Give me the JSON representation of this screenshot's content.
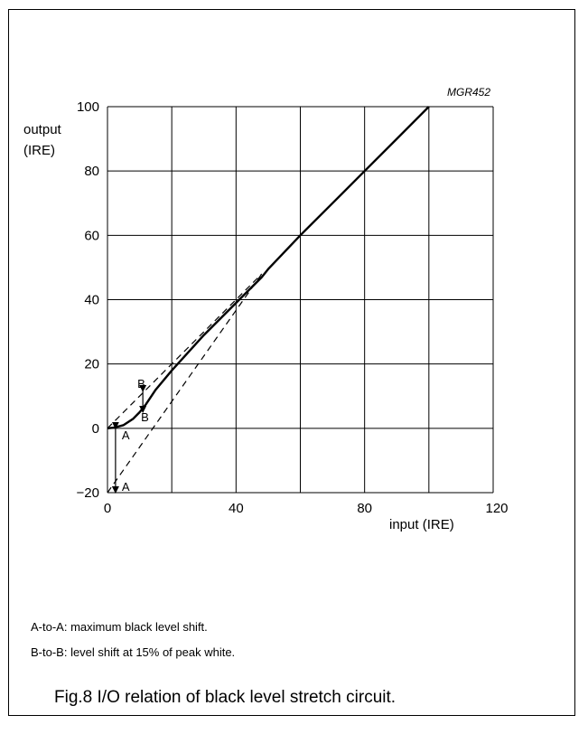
{
  "chart_data": {
    "type": "line",
    "code_label": "MGR452",
    "ylabel_lines": [
      "output",
      "(IRE)"
    ],
    "xlabel": "input (IRE)",
    "xlim": [
      0,
      120
    ],
    "ylim": [
      -20,
      100
    ],
    "x_ticks": [
      0,
      40,
      80,
      120
    ],
    "y_ticks": [
      100,
      80,
      60,
      40,
      20,
      0,
      -20
    ],
    "y_tick_labels": [
      "100",
      "80",
      "60",
      "40",
      "20",
      "0",
      "−20"
    ],
    "grid": true,
    "series": [
      {
        "style": "solid",
        "x": [
          0,
          2,
          5,
          8,
          10,
          12,
          15,
          20,
          30,
          40,
          48,
          50,
          60,
          70,
          80,
          90,
          100
        ],
        "y": [
          0,
          0.2,
          1,
          3,
          5,
          7.5,
          12,
          18,
          29,
          39,
          47,
          49.5,
          60,
          70,
          80,
          90,
          100
        ]
      },
      {
        "style": "dashed",
        "x": [
          0,
          48
        ],
        "y": [
          0,
          48
        ]
      },
      {
        "style": "dashed",
        "x": [
          0,
          48
        ],
        "y": [
          -20,
          48
        ]
      }
    ],
    "annotations": [
      {
        "label": "A",
        "x": 2.5,
        "y_from": 0,
        "y_to": -20
      },
      {
        "label": "B",
        "x": 11,
        "y_from": 11.5,
        "y_to": 5
      }
    ]
  },
  "notes": [
    "A-to-A: maximum black level shift.",
    "B-to-B: level shift at 15% of peak white."
  ],
  "caption": "Fig.8  I/O relation of black level stretch circuit."
}
